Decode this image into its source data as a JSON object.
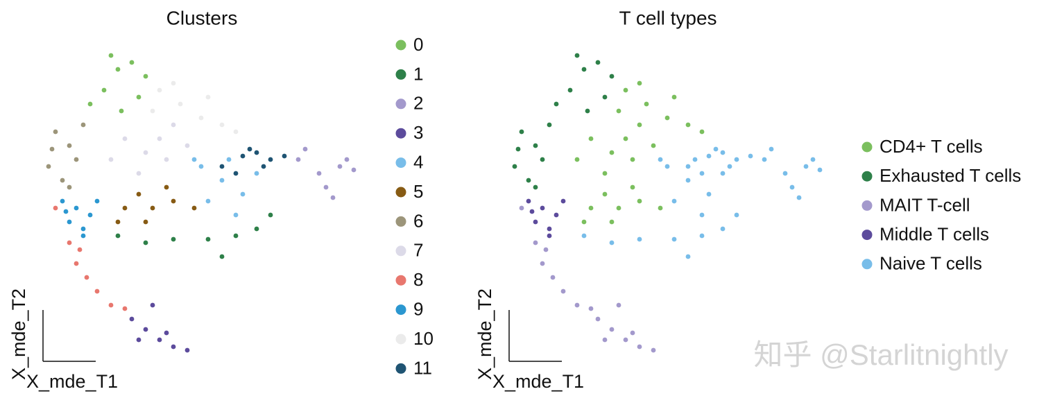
{
  "chart_data": [
    {
      "type": "scatter",
      "title": "Clusters",
      "xlabel": "X_mde_T1",
      "ylabel": "X_mde_T2",
      "xlim": [
        0,
        480
      ],
      "ylim": [
        0,
        460
      ],
      "series": [
        {
          "name": "0",
          "color": "#7bbf5e",
          "x": [
            120,
            100,
            140,
            150,
            80,
            125,
            160,
            110
          ],
          "y": [
            425,
            395,
            435,
            385,
            375,
            365,
            415,
            445
          ]
        },
        {
          "name": "1",
          "color": "#2e8049",
          "x": [
            120,
            160,
            200,
            250,
            290,
            320,
            340,
            270
          ],
          "y": [
            185,
            175,
            180,
            180,
            185,
            195,
            215,
            155
          ]
        },
        {
          "name": "2",
          "color": "#a399cc",
          "x": [
            380,
            410,
            440,
            460,
            420,
            390,
            450,
            430
          ],
          "y": [
            295,
            275,
            285,
            280,
            255,
            310,
            295,
            240
          ]
        },
        {
          "name": "3",
          "color": "#5c4b9c",
          "x": [
            140,
            160,
            180,
            200,
            220,
            170,
            190,
            150
          ],
          "y": [
            65,
            50,
            35,
            25,
            20,
            85,
            45,
            35
          ]
        },
        {
          "name": "4",
          "color": "#78bde9",
          "x": [
            240,
            270,
            300,
            250,
            320,
            290,
            230,
            280
          ],
          "y": [
            285,
            265,
            245,
            235,
            275,
            215,
            295,
            295
          ]
        },
        {
          "name": "5",
          "color": "#875b14",
          "x": [
            130,
            150,
            170,
            200,
            230,
            160,
            190,
            120
          ],
          "y": [
            225,
            245,
            225,
            235,
            225,
            205,
            255,
            205
          ]
        },
        {
          "name": "6",
          "color": "#9c957a",
          "x": [
            30,
            50,
            20,
            40,
            60,
            70,
            25,
            50
          ],
          "y": [
            335,
            315,
            285,
            265,
            295,
            345,
            310,
            255
          ]
        },
        {
          "name": "7",
          "color": "#dcdae8",
          "x": [
            130,
            160,
            190,
            110,
            200,
            150,
            180,
            220
          ],
          "y": [
            325,
            305,
            295,
            295,
            345,
            275,
            325,
            315
          ]
        },
        {
          "name": "8",
          "color": "#e8776e",
          "x": [
            30,
            50,
            60,
            75,
            90,
            110,
            130,
            65
          ],
          "y": [
            225,
            175,
            145,
            125,
            105,
            85,
            80,
            165
          ]
        },
        {
          "name": "9",
          "color": "#2b97d0",
          "x": [
            40,
            60,
            80,
            70,
            50,
            90,
            70,
            45
          ],
          "y": [
            235,
            225,
            215,
            195,
            205,
            235,
            185,
            220
          ]
        },
        {
          "name": "10",
          "color": "#ebebeb",
          "x": [
            180,
            210,
            240,
            270,
            200,
            250,
            290,
            170
          ],
          "y": [
            395,
            375,
            355,
            345,
            405,
            385,
            335,
            365
          ]
        },
        {
          "name": "11",
          "color": "#1f5473",
          "x": [
            270,
            300,
            320,
            340,
            360,
            290,
            330,
            310
          ],
          "y": [
            285,
            300,
            305,
            295,
            300,
            275,
            285,
            310
          ]
        }
      ]
    },
    {
      "type": "scatter",
      "title": "T cell types",
      "xlabel": "X_mde_T1",
      "ylabel": "X_mde_T2",
      "xlim": [
        0,
        480
      ],
      "ylim": [
        0,
        460
      ],
      "series": [
        {
          "name": "CD4+ T cells",
          "color": "#7bbf5e",
          "x": [
            130,
            150,
            170,
            200,
            230,
            160,
            190,
            120,
            130,
            160,
            190,
            110,
            200,
            150,
            180,
            220,
            180,
            210,
            240,
            270,
            200,
            250,
            290,
            170
          ],
          "y": [
            225,
            245,
            225,
            235,
            225,
            205,
            255,
            205,
            325,
            305,
            295,
            295,
            345,
            275,
            325,
            315,
            395,
            375,
            355,
            345,
            405,
            385,
            335,
            365
          ]
        },
        {
          "name": "Exhausted T cells",
          "color": "#2e8049",
          "x": [
            120,
            100,
            140,
            150,
            80,
            125,
            160,
            110,
            30,
            50,
            20,
            40,
            60,
            70,
            25,
            50
          ],
          "y": [
            425,
            395,
            435,
            385,
            375,
            365,
            415,
            445,
            335,
            315,
            285,
            265,
            295,
            345,
            310,
            255
          ]
        },
        {
          "name": "MAIT T-cell",
          "color": "#a399cc",
          "x": [
            140,
            160,
            180,
            200,
            220,
            170,
            190,
            150,
            30,
            50,
            60,
            75,
            90,
            110,
            130,
            65
          ],
          "y": [
            65,
            50,
            35,
            25,
            20,
            85,
            45,
            35,
            225,
            175,
            145,
            125,
            105,
            85,
            80,
            165
          ]
        },
        {
          "name": "Middle T cells",
          "color": "#5c4b9c",
          "x": [
            40,
            60,
            80,
            70,
            50,
            90,
            70,
            45
          ],
          "y": [
            235,
            225,
            215,
            195,
            205,
            235,
            185,
            220
          ]
        },
        {
          "name": "Naive T cells",
          "color": "#78bde9",
          "x": [
            120,
            160,
            200,
            250,
            290,
            320,
            340,
            270,
            380,
            410,
            440,
            460,
            420,
            390,
            450,
            430,
            240,
            270,
            300,
            250,
            320,
            290,
            230,
            280,
            270,
            300,
            320,
            340,
            360,
            290,
            330,
            310
          ],
          "y": [
            185,
            175,
            180,
            180,
            185,
            195,
            215,
            155,
            295,
            275,
            285,
            280,
            255,
            310,
            295,
            240,
            285,
            265,
            245,
            235,
            275,
            215,
            295,
            295,
            285,
            300,
            305,
            295,
            300,
            275,
            285,
            310
          ]
        }
      ]
    }
  ],
  "watermark": "知乎 @Starlitnightly"
}
